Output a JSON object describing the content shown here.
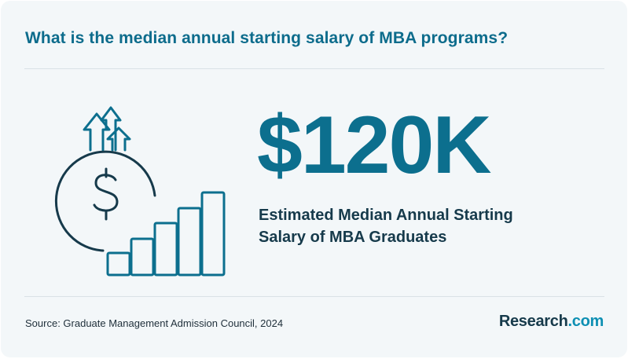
{
  "question": "What is the median annual starting salary of MBA programs?",
  "stat": {
    "value": "$120K",
    "caption_line1": "Estimated Median Annual Starting",
    "caption_line2": "Salary of MBA Graduates"
  },
  "illustration": {
    "icons": [
      "dollar-coin-icon",
      "up-arrows-icon",
      "rising-bars-icon"
    ],
    "bar_count": 5
  },
  "footer": {
    "source": "Source: Graduate Management Admission Council, 2024",
    "brand_name": "Research",
    "brand_suffix": ".com"
  },
  "colors": {
    "accent": "#0c6f8e",
    "dark": "#163a4b",
    "background": "#f3f7f9"
  }
}
